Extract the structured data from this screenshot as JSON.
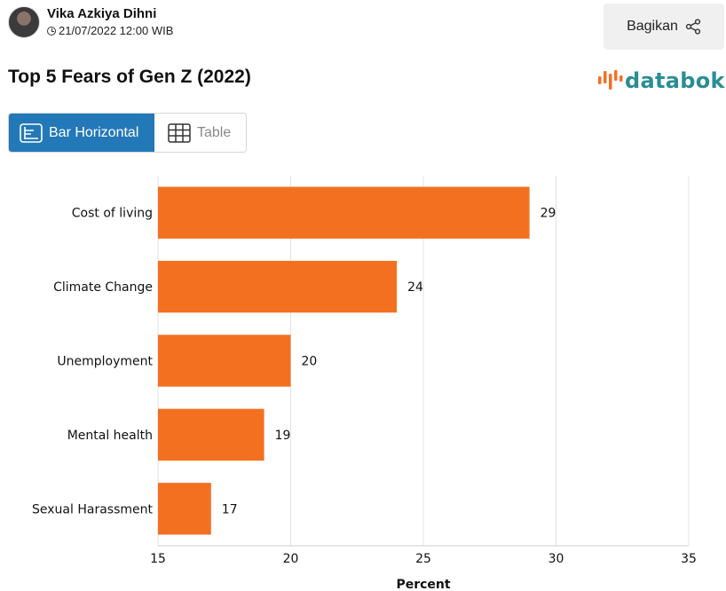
{
  "author": {
    "name": "Vika Azkiya Dihni",
    "datetime": "21/07/2022 12:00 WIB"
  },
  "share": {
    "label": "Bagikan",
    "icon": "share-icon"
  },
  "logo": {
    "text": "databoks",
    "color": "#2a8e93"
  },
  "view_toggle": {
    "options": [
      {
        "label": "Bar Horizontal",
        "icon": "bar-chart-icon",
        "active": true
      },
      {
        "label": "Table",
        "icon": "table-icon",
        "active": false
      }
    ],
    "active_color": "#2378b8"
  },
  "chart_data": {
    "type": "bar",
    "orientation": "horizontal",
    "title": "Top 5 Fears of Gen Z (2022)",
    "categories": [
      "Cost of living",
      "Climate Change",
      "Unemployment",
      "Mental health",
      "Sexual Harassment"
    ],
    "values": [
      29,
      24,
      20,
      19,
      17
    ],
    "xlabel": "Percent",
    "ylabel": "",
    "xlim": [
      15,
      35
    ],
    "xticks": [
      15,
      20,
      25,
      30,
      35
    ],
    "bar_color": "#f37021",
    "grid": true,
    "legend": "none"
  }
}
